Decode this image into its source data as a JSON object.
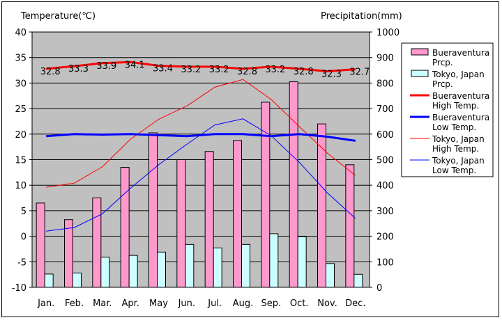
{
  "chart_data": {
    "type": "bar",
    "y_left_label": "Temperature(℃)",
    "y_right_label": "Precipitation(mm)",
    "categories": [
      "Jan.",
      "Feb.",
      "Mar.",
      "Apr.",
      "May",
      "Jun.",
      "Jul.",
      "Aug.",
      "Sep.",
      "Oct.",
      "Nov.",
      "Dec."
    ],
    "y_left_ticks": [
      "40",
      "35",
      "30",
      "25",
      "20",
      "15",
      "10",
      "5",
      "0",
      "-5",
      "-10"
    ],
    "y_right_ticks": [
      "1000",
      "900",
      "800",
      "700",
      "600",
      "500",
      "400",
      "300",
      "200",
      "100",
      "0"
    ],
    "ylim_left": [
      -10,
      40
    ],
    "ylim_right": [
      0,
      1000
    ],
    "legend_position": "right",
    "grid": true,
    "bar_series": [
      {
        "name": "Bueraventura Prcp.",
        "legend_lines": [
          "Bueraventura",
          "Prcp."
        ],
        "color": "#ff99cc",
        "values": [
          330,
          265,
          350,
          470,
          605,
          500,
          532,
          575,
          725,
          805,
          640,
          480
        ]
      },
      {
        "name": "Tokyo, Japan Prcp.",
        "legend_lines": [
          "Tokyo, Japan",
          "Prcp."
        ],
        "color": "#ccffff",
        "values": [
          52,
          56,
          118,
          125,
          138,
          168,
          154,
          168,
          210,
          198,
          93,
          51
        ]
      }
    ],
    "line_series": [
      {
        "name": "Bueraventura High Temp.",
        "legend_lines": [
          "Bueraventura",
          "High Temp."
        ],
        "color": "#ff0000",
        "width": 3,
        "values": [
          32.8,
          33.3,
          33.9,
          34.1,
          33.4,
          33.2,
          33.2,
          32.8,
          33.2,
          32.8,
          32.3,
          32.7
        ],
        "labels": [
          "32.8",
          "33.3",
          "33.9",
          "34.1",
          "33.4",
          "33.2",
          "33.2",
          "32.8",
          "33.2",
          "32.8",
          "32.3",
          "32.7"
        ]
      },
      {
        "name": "Bueraventura Low Temp.",
        "legend_lines": [
          "Bueraventura",
          "Low Temp."
        ],
        "color": "#0000ff",
        "width": 3,
        "values": [
          19.6,
          20.0,
          19.9,
          20.0,
          19.8,
          19.6,
          20.0,
          20.0,
          19.6,
          20.0,
          19.5,
          18.7
        ]
      },
      {
        "name": "Tokyo, Japan High Temp.",
        "legend_lines": [
          "Tokyo, Japan",
          "High Temp."
        ],
        "color": "#ff0000",
        "width": 1,
        "values": [
          9.6,
          10.4,
          13.6,
          19.0,
          22.9,
          25.5,
          29.2,
          30.7,
          26.8,
          21.5,
          16.3,
          11.9
        ]
      },
      {
        "name": "Tokyo, Japan Low Temp.",
        "legend_lines": [
          "Tokyo, Japan",
          "Low Temp."
        ],
        "color": "#0000ff",
        "width": 1,
        "values": [
          1.0,
          1.7,
          4.4,
          9.4,
          14.0,
          18.0,
          21.8,
          23.0,
          19.7,
          14.5,
          8.5,
          3.5
        ]
      }
    ]
  }
}
